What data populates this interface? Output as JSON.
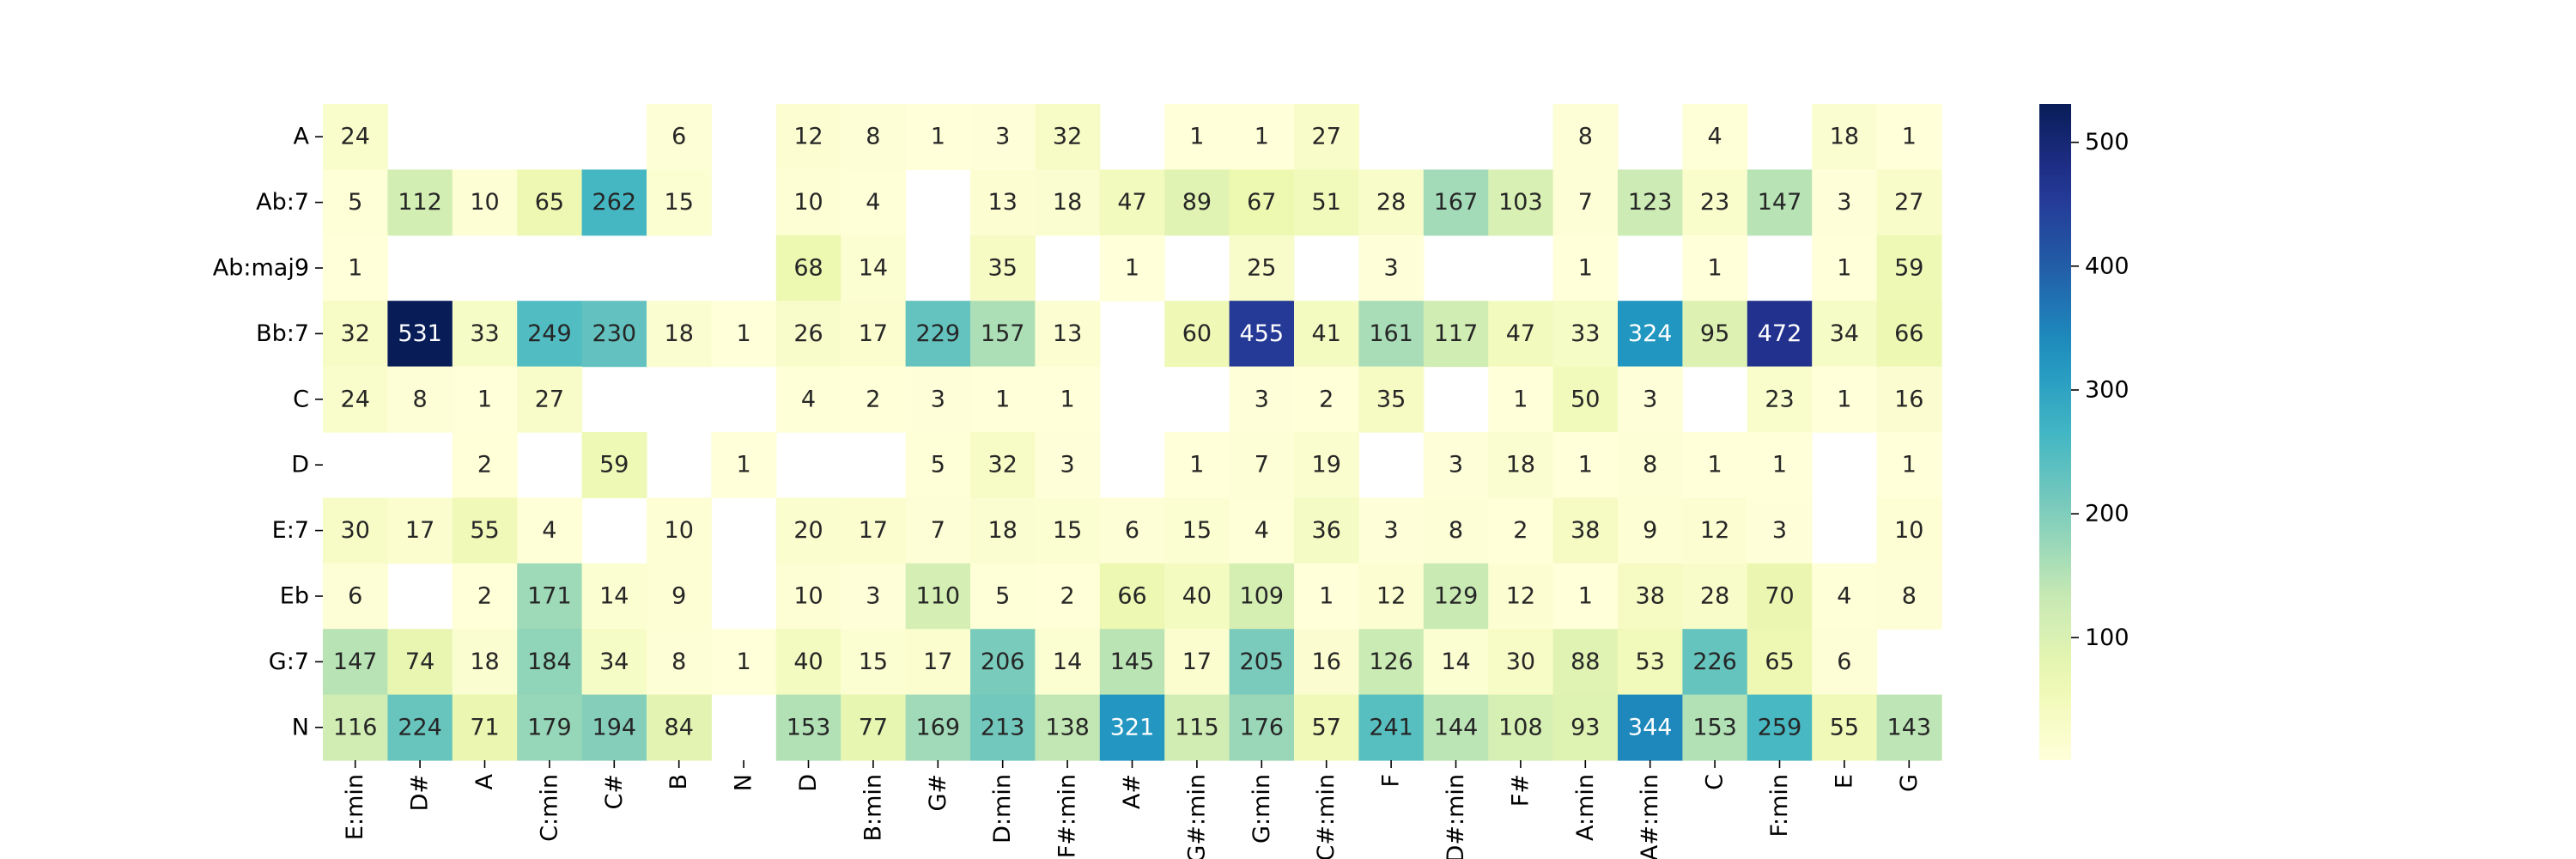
{
  "chart_data": {
    "type": "heatmap",
    "title": "",
    "xlabel": "",
    "ylabel": "",
    "rows": [
      "A",
      "Ab:7",
      "Ab:maj9",
      "Bb:7",
      "C",
      "D",
      "E:7",
      "Eb",
      "G:7",
      "N"
    ],
    "columns": [
      "E:min",
      "D#",
      "A",
      "C:min",
      "C#",
      "B",
      "N",
      "D",
      "B:min",
      "G#",
      "D:min",
      "F#:min",
      "A#",
      "G#:min",
      "G:min",
      "C#:min",
      "F",
      "D#:min",
      "F#",
      "A:min",
      "A#:min",
      "C",
      "F:min",
      "E",
      "G"
    ],
    "values": [
      [
        24,
        null,
        null,
        null,
        null,
        6,
        null,
        12,
        8,
        1,
        3,
        32,
        null,
        1,
        1,
        27,
        null,
        null,
        null,
        8,
        null,
        4,
        null,
        18,
        1
      ],
      [
        5,
        112,
        10,
        65,
        262,
        15,
        null,
        10,
        4,
        null,
        13,
        18,
        47,
        89,
        67,
        51,
        28,
        167,
        103,
        7,
        123,
        23,
        147,
        3,
        27
      ],
      [
        1,
        null,
        null,
        null,
        null,
        null,
        null,
        68,
        14,
        null,
        35,
        null,
        1,
        null,
        25,
        null,
        3,
        null,
        null,
        1,
        null,
        1,
        null,
        1,
        59
      ],
      [
        32,
        531,
        33,
        249,
        230,
        18,
        1,
        26,
        17,
        229,
        157,
        13,
        null,
        60,
        455,
        41,
        161,
        117,
        47,
        33,
        324,
        95,
        472,
        34,
        66
      ],
      [
        24,
        8,
        1,
        27,
        null,
        null,
        null,
        4,
        2,
        3,
        1,
        1,
        null,
        null,
        3,
        2,
        35,
        null,
        1,
        50,
        3,
        null,
        23,
        1,
        16
      ],
      [
        null,
        null,
        2,
        null,
        59,
        null,
        1,
        null,
        null,
        5,
        32,
        3,
        null,
        1,
        7,
        19,
        null,
        3,
        18,
        1,
        8,
        1,
        1,
        null,
        1
      ],
      [
        30,
        17,
        55,
        4,
        null,
        10,
        null,
        20,
        17,
        7,
        18,
        15,
        6,
        15,
        4,
        36,
        3,
        8,
        2,
        38,
        9,
        12,
        3,
        null,
        10
      ],
      [
        6,
        null,
        2,
        171,
        14,
        9,
        null,
        10,
        3,
        110,
        5,
        2,
        66,
        40,
        109,
        1,
        12,
        129,
        12,
        1,
        38,
        28,
        70,
        4,
        8
      ],
      [
        147,
        74,
        18,
        184,
        34,
        8,
        1,
        40,
        15,
        17,
        206,
        14,
        145,
        17,
        205,
        16,
        126,
        14,
        30,
        88,
        53,
        226,
        65,
        6,
        null
      ],
      [
        116,
        224,
        71,
        179,
        194,
        84,
        null,
        153,
        77,
        169,
        213,
        138,
        321,
        115,
        176,
        57,
        241,
        144,
        108,
        93,
        344,
        153,
        259,
        55,
        143
      ]
    ],
    "colormap": "YlGnBu",
    "vmin": 1,
    "vmax": 531,
    "colorbar": {
      "ticks": [
        100,
        200,
        300,
        400,
        500
      ],
      "tick_labels": [
        "100",
        "200",
        "300",
        "400",
        "500"
      ]
    },
    "annotations": "cell values",
    "empty_cells": "blank",
    "grid": false,
    "legend": "colorbar-right"
  }
}
